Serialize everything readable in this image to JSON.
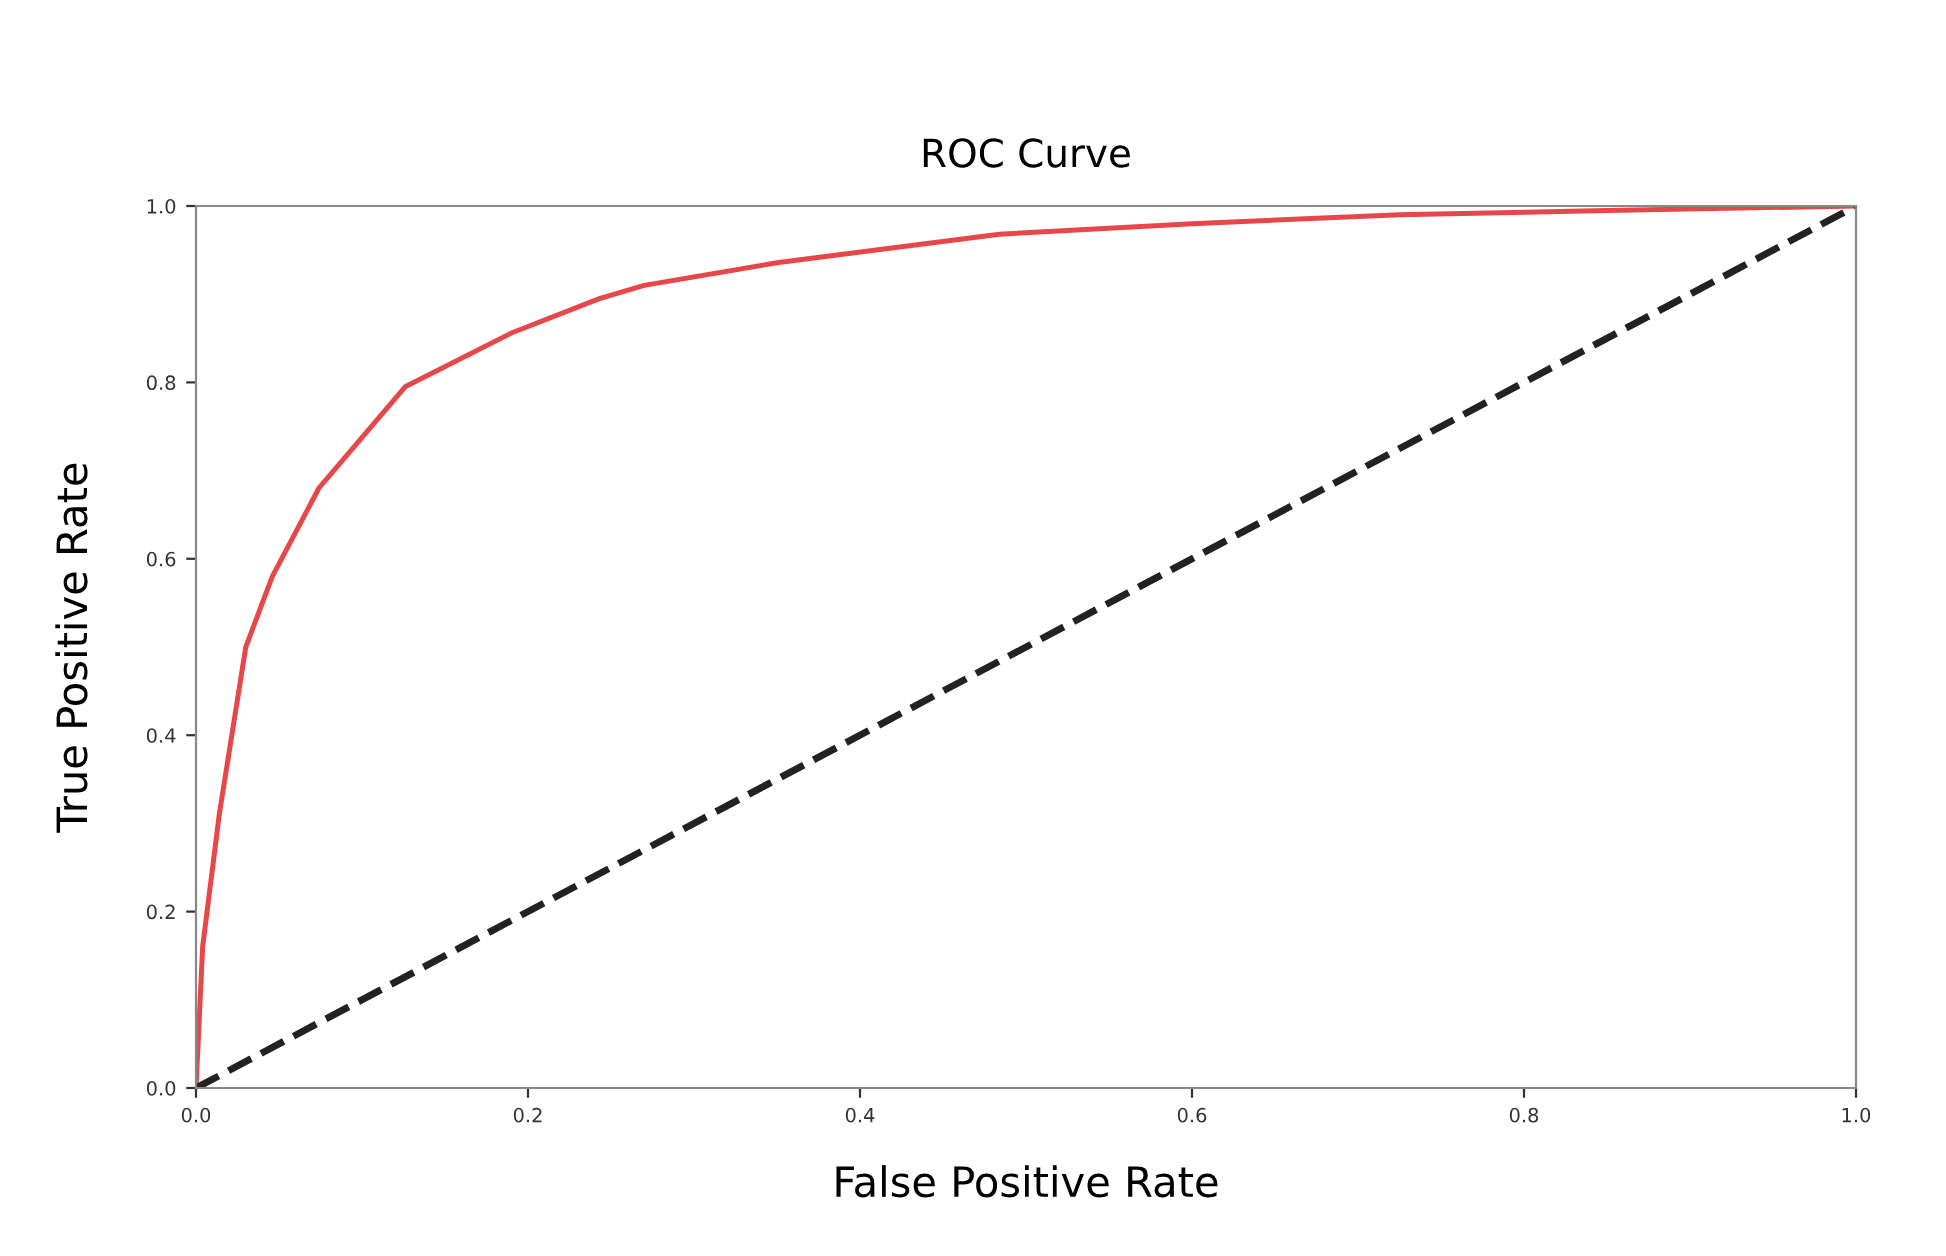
{
  "chart_data": {
    "type": "line",
    "title": "ROC Curve",
    "xlabel": "False Positive Rate",
    "ylabel": "True Positive Rate",
    "xlim": [
      0.0,
      1.0
    ],
    "ylim": [
      0.0,
      1.0
    ],
    "xticks": [
      {
        "value": 0,
        "label": "0.0"
      },
      {
        "value": 0.2,
        "label": "0.2"
      },
      {
        "value": 0.4,
        "label": "0.4"
      },
      {
        "value": 0.6,
        "label": "0.6"
      },
      {
        "value": 0.8,
        "label": "0.8"
      },
      {
        "value": 1,
        "label": "1.0"
      }
    ],
    "yticks": [
      {
        "value": 0,
        "label": "0.0"
      },
      {
        "value": 0.2,
        "label": "0.2"
      },
      {
        "value": 0.4,
        "label": "0.4"
      },
      {
        "value": 0.6,
        "label": "0.6"
      },
      {
        "value": 0.8,
        "label": "0.8"
      },
      {
        "value": 1,
        "label": "1.0"
      }
    ],
    "grid": false,
    "marker": "none",
    "series": [
      {
        "color": "#e8474a",
        "line_style": "solid",
        "x": [
          0,
          0.004,
          0.014,
          0.03,
          0.046,
          0.074,
          0.126,
          0.19,
          0.243,
          0.27,
          0.351,
          0.484,
          0.6,
          0.725,
          0.85,
          1.0
        ],
        "values": [
          0,
          0.16,
          0.31,
          0.5,
          0.58,
          0.68,
          0.795,
          0.856,
          0.895,
          0.91,
          0.936,
          0.968,
          0.98,
          0.99,
          0.995,
          1.0
        ]
      },
      {
        "color": "#222222",
        "line_style": "dashed",
        "x": [
          0,
          1.0
        ],
        "values": [
          0,
          1.0
        ]
      }
    ]
  }
}
